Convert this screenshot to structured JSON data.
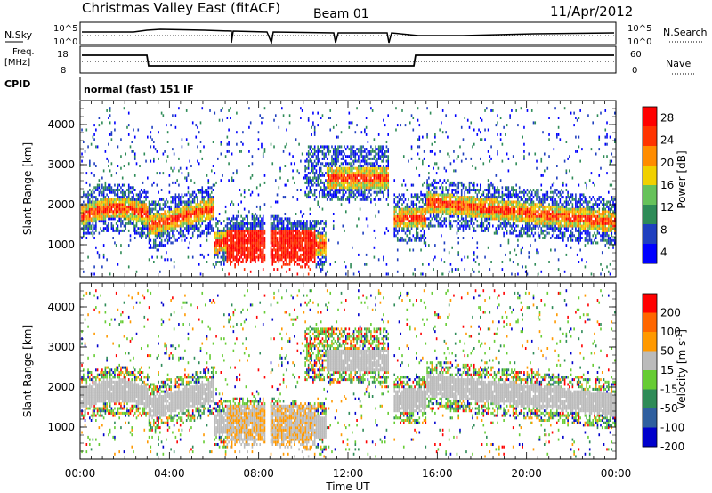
{
  "header": {
    "title": "Christmas Valley East (fitACF)",
    "beam": "Beam 01",
    "date": "11/Apr/2012"
  },
  "panels": {
    "noise": {
      "left_label": "N.Sky",
      "right_label": "N.Search",
      "ticks": [
        "10^5",
        "10^0"
      ]
    },
    "freq": {
      "left_label_1": "Freq.",
      "left_label_2": "[MHz]",
      "left_ticks": [
        "18",
        "8"
      ],
      "right_label": "Nave",
      "right_ticks": [
        "60",
        "0"
      ]
    },
    "cpid": {
      "label": "CPID",
      "text": "normal (fast) 151 IF"
    }
  },
  "chart_data": [
    {
      "type": "heatmap",
      "name": "power",
      "ylabel": "Slant Range [km]",
      "yticks": [
        "4000",
        "3000",
        "2000",
        "1000"
      ],
      "colorbar_label": "Power [dB]",
      "colorbar_ticks": [
        "28",
        "24",
        "20",
        "16",
        "12",
        "8",
        "4"
      ],
      "colors": [
        "#0000ff",
        "#1f3fbf",
        "#2e8b57",
        "#66c25a",
        "#f0d000",
        "#ff8c00",
        "#ff3300",
        "#ff0000"
      ]
    },
    {
      "type": "heatmap",
      "name": "velocity",
      "ylabel": "Slant Range [km]",
      "yticks": [
        "4000",
        "3000",
        "2000",
        "1000"
      ],
      "colorbar_label": "Velocity [m s",
      "colorbar_label_sup": "-1",
      "colorbar_label_end": "]",
      "colorbar_ticks": [
        "200",
        "100",
        "50",
        "15",
        "-15",
        "-50",
        "-100",
        "-200"
      ],
      "colors": [
        "#0000cc",
        "#2f5f9f",
        "#2e8b57",
        "#66cc33",
        "#bbbbbb",
        "#ff9900",
        "#ff6600",
        "#ff0000"
      ]
    }
  ],
  "xaxis": {
    "label": "Time UT",
    "ticks": [
      "00:00",
      "04:00",
      "08:00",
      "12:00",
      "16:00",
      "20:00",
      "00:00"
    ]
  }
}
